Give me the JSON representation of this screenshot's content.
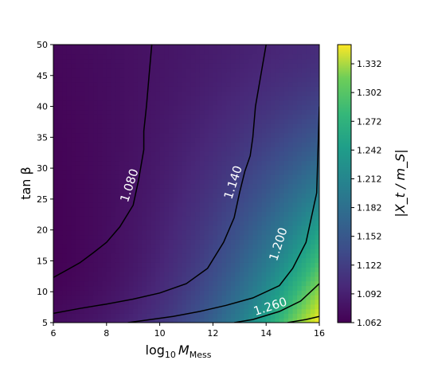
{
  "chart_data": {
    "type": "heatmap",
    "xlabel": "log",
    "xlabel_sub": "10",
    "xlabel_var": "M",
    "xlabel_var_sub": "Mess",
    "ylabel": "tan β",
    "colorbar_label": "|X_t / m_S|",
    "xlim": [
      6,
      16
    ],
    "ylim": [
      5,
      50
    ],
    "x_ticks": [
      6,
      8,
      10,
      12,
      14,
      16
    ],
    "y_ticks": [
      5,
      10,
      15,
      20,
      25,
      30,
      35,
      40,
      45,
      50
    ],
    "color_range": [
      1.062,
      1.352
    ],
    "colorbar_ticks": [
      "1.062",
      "1.092",
      "1.122",
      "1.152",
      "1.182",
      "1.212",
      "1.242",
      "1.272",
      "1.302",
      "1.332"
    ],
    "colormap": "viridis",
    "contours": [
      {
        "level": "1.080",
        "points": [
          [
            6.0,
            12.3
          ],
          [
            6.5,
            13.5
          ],
          [
            7.0,
            14.7
          ],
          [
            7.5,
            16.3
          ],
          [
            8.0,
            18.0
          ],
          [
            8.5,
            20.5
          ],
          [
            9.0,
            24.0
          ],
          [
            9.2,
            28.0
          ],
          [
            9.4,
            33.0
          ],
          [
            9.4,
            36.0
          ],
          [
            9.5,
            40.0
          ],
          [
            9.6,
            45.0
          ],
          [
            9.7,
            50.0
          ]
        ],
        "label_at": [
          9.0,
          27.0
        ]
      },
      {
        "level": "1.140",
        "points": [
          [
            6.0,
            6.5
          ],
          [
            7.0,
            7.3
          ],
          [
            8.0,
            8.0
          ],
          [
            9.0,
            8.8
          ],
          [
            10.0,
            9.8
          ],
          [
            11.0,
            11.3
          ],
          [
            11.8,
            13.8
          ],
          [
            12.4,
            18.0
          ],
          [
            12.8,
            22.0
          ],
          [
            13.0,
            26.0
          ],
          [
            13.2,
            29.5
          ],
          [
            13.4,
            32.0
          ],
          [
            13.5,
            35.0
          ],
          [
            13.6,
            40.0
          ],
          [
            13.8,
            45.0
          ],
          [
            14.0,
            50.0
          ]
        ],
        "label_at": [
          12.9,
          27.5
        ]
      },
      {
        "level": "1.200",
        "points": [
          [
            8.8,
            5.0
          ],
          [
            9.5,
            5.4
          ],
          [
            10.5,
            6.0
          ],
          [
            11.5,
            6.8
          ],
          [
            12.5,
            7.8
          ],
          [
            13.5,
            9.0
          ],
          [
            14.5,
            11.0
          ],
          [
            15.0,
            13.8
          ],
          [
            15.5,
            18.0
          ],
          [
            15.9,
            26.0
          ],
          [
            16.0,
            40.0
          ]
        ],
        "label_at": [
          14.6,
          17.5
        ]
      },
      {
        "level": "1.260",
        "points": [
          [
            12.8,
            5.0
          ],
          [
            13.5,
            5.5
          ],
          [
            14.5,
            6.8
          ],
          [
            15.3,
            8.5
          ],
          [
            16.0,
            11.3
          ]
        ],
        "label_at": [
          14.2,
          7.0
        ]
      },
      {
        "level": "",
        "points": [
          [
            14.8,
            5.0
          ],
          [
            15.5,
            5.5
          ],
          [
            16.0,
            6.0
          ]
        ],
        "label_at": null
      }
    ]
  }
}
